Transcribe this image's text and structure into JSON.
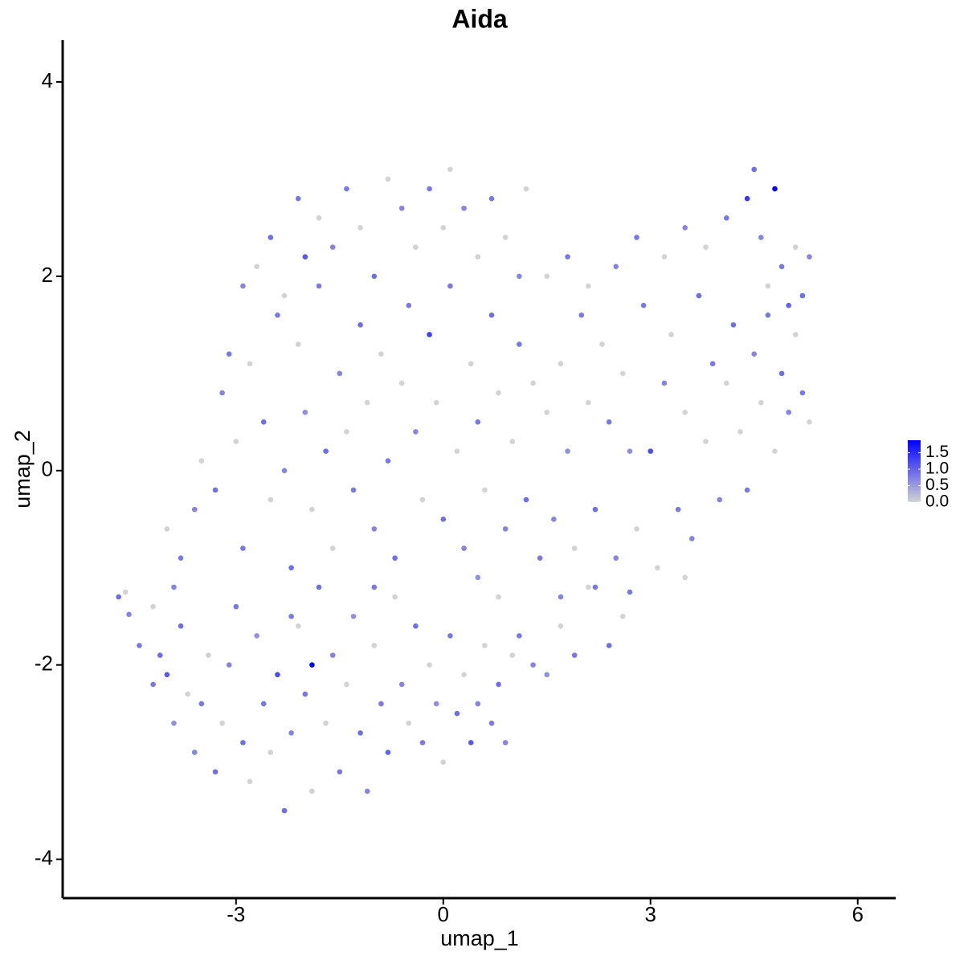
{
  "chart_data": {
    "type": "scatter",
    "title": "Aida",
    "x_label": "umap_1",
    "y_label": "umap_2",
    "xlim": [
      -5.51,
      6.55
    ],
    "ylim": [
      -4.4,
      4.43
    ],
    "xticks": [
      -3,
      0,
      3,
      6
    ],
    "yticks": [
      -4,
      -2,
      0,
      2,
      4
    ],
    "color_low": "#d3d3d3",
    "color_high": "#0000ff",
    "colorlim": [
      0,
      1.88
    ],
    "colorticks": [
      {
        "value": 0,
        "label": "0.0"
      },
      0.5,
      {
        "value": 1,
        "label": "1.0"
      },
      1.5
    ],
    "x": [
      -4.7,
      -4.6,
      -4.55,
      -4.4,
      -4.2,
      -4.1,
      -4.0,
      -4.2,
      -3.9,
      -3.8,
      -3.7,
      -3.6,
      -3.5,
      -3.4,
      -3.3,
      -3.2,
      -3.1,
      -3.0,
      -2.9,
      -2.8,
      -2.7,
      -2.6,
      -2.5,
      -2.4,
      -2.3,
      -2.2,
      -2.1,
      -2.0,
      -1.9,
      -1.9,
      -1.8,
      -1.7,
      -1.6,
      -1.5,
      -1.4,
      -1.3,
      -1.2,
      -1.1,
      -1.0,
      -0.9,
      -0.8,
      -0.7,
      -0.6,
      -0.5,
      -0.4,
      -0.3,
      -0.2,
      -0.1,
      0.0,
      0.1,
      0.2,
      0.3,
      0.4,
      0.5,
      0.6,
      0.7,
      0.8,
      0.9,
      1.0,
      1.1,
      1.3,
      1.5,
      1.7,
      1.9,
      2.1,
      2.4,
      2.6,
      2.7,
      -4.0,
      -3.8,
      -3.6,
      -3.5,
      -3.3,
      -3.2,
      -3.0,
      -2.9,
      -2.8,
      -2.6,
      -2.5,
      -2.4,
      -2.3,
      -2.2,
      -2.1,
      -2.0,
      -1.9,
      -1.8,
      -1.7,
      -1.6,
      -1.5,
      -1.4,
      -1.3,
      -1.2,
      -1.1,
      -1.0,
      -0.9,
      -0.8,
      -0.7,
      -0.6,
      -0.5,
      -0.4,
      -0.3,
      -0.2,
      -0.1,
      0.0,
      0.1,
      0.2,
      0.3,
      0.4,
      0.5,
      0.6,
      0.7,
      0.8,
      0.9,
      1.0,
      1.1,
      1.2,
      1.3,
      1.4,
      1.5,
      1.6,
      1.7,
      1.8,
      1.9,
      2.0,
      2.1,
      2.2,
      2.3,
      2.4,
      2.5,
      2.6,
      2.7,
      2.8,
      2.9,
      3.0,
      3.1,
      3.2,
      3.3,
      3.4,
      3.5,
      3.6,
      3.7,
      3.8,
      3.9,
      4.0,
      4.1,
      4.2,
      4.3,
      4.4,
      4.5,
      4.6,
      4.7,
      4.8,
      4.9,
      5.0,
      5.1,
      5.2,
      5.3,
      -3.1,
      -2.9,
      -2.7,
      -2.5,
      -2.3,
      -2.1,
      -2.0,
      -1.8,
      -1.6,
      -1.4,
      -1.2,
      -1.0,
      -0.8,
      -0.6,
      -0.4,
      -0.2,
      0.0,
      0.1,
      0.3,
      0.5,
      0.7,
      0.9,
      1.1,
      1.2,
      1.5,
      1.8,
      2.1,
      2.5,
      2.8,
      3.2,
      3.5,
      3.8,
      4.1,
      4.4,
      4.5,
      4.8,
      4.6,
      4.9,
      5.1,
      5.2,
      5.3,
      4.7,
      5.0,
      -2.2,
      -3.9,
      -1.0,
      0.8,
      1.7,
      2.2,
      3.5,
      0.5
    ],
    "y": [
      -1.3,
      -1.25,
      -1.48,
      -1.8,
      -1.4,
      -1.9,
      -2.1,
      -2.2,
      -2.6,
      -1.6,
      -2.3,
      -2.9,
      -2.4,
      -1.9,
      -3.1,
      -2.6,
      -2.0,
      -1.4,
      -2.8,
      -3.2,
      -1.7,
      -2.4,
      -2.9,
      -2.1,
      -3.5,
      -2.7,
      -1.6,
      -2.3,
      -2.0,
      -3.3,
      -1.2,
      -2.6,
      -1.9,
      -3.1,
      -2.2,
      -1.5,
      -2.7,
      -3.3,
      -1.8,
      -2.4,
      -2.9,
      -1.3,
      -2.2,
      -2.6,
      -1.6,
      -2.8,
      -2.0,
      -2.4,
      -3.0,
      -1.7,
      -2.5,
      -2.1,
      -2.8,
      -2.4,
      -1.8,
      -2.6,
      -2.2,
      -2.8,
      -1.9,
      -1.7,
      -2.0,
      -2.1,
      -1.6,
      -1.9,
      -1.2,
      -1.8,
      -1.5,
      -1.25,
      -0.6,
      -0.9,
      -0.4,
      0.1,
      -0.2,
      0.8,
      0.3,
      -0.8,
      1.1,
      0.5,
      -0.3,
      1.6,
      0.0,
      -1.0,
      1.3,
      0.6,
      -0.4,
      1.9,
      0.2,
      -0.8,
      1.0,
      0.4,
      -0.2,
      1.5,
      0.7,
      -0.6,
      1.2,
      0.1,
      -0.9,
      0.9,
      1.7,
      0.4,
      -0.3,
      1.4,
      0.7,
      -0.5,
      1.9,
      0.2,
      -0.8,
      1.1,
      0.5,
      -0.2,
      1.6,
      0.8,
      -0.6,
      0.3,
      1.3,
      -0.3,
      0.9,
      -0.9,
      0.6,
      -0.5,
      1.1,
      0.2,
      -0.8,
      1.6,
      0.7,
      -0.4,
      1.3,
      0.5,
      -0.9,
      1.0,
      0.2,
      -0.6,
      1.7,
      0.2,
      -1.0,
      0.9,
      1.4,
      -0.4,
      0.6,
      -0.7,
      1.8,
      0.3,
      1.1,
      -0.3,
      0.9,
      1.5,
      0.4,
      -0.2,
      1.2,
      0.7,
      1.6,
      0.2,
      1.0,
      0.6,
      1.4,
      0.8,
      0.5,
      1.2,
      1.9,
      2.1,
      2.4,
      1.8,
      2.8,
      2.2,
      2.6,
      2.3,
      2.9,
      2.5,
      2.0,
      3.0,
      2.7,
      2.3,
      2.9,
      2.5,
      3.1,
      2.7,
      2.2,
      2.8,
      2.4,
      2.0,
      2.9,
      2.0,
      2.2,
      1.9,
      2.1,
      2.4,
      2.2,
      2.5,
      2.3,
      2.6,
      2.8,
      3.1,
      2.9,
      2.4,
      2.1,
      2.3,
      1.8,
      2.2,
      1.9,
      1.7,
      -1.5,
      -1.2,
      -1.2,
      -1.3,
      -1.3,
      -1.2,
      -1.1,
      -1.1
    ],
    "values": [
      0.9,
      0,
      0.7,
      0.8,
      0,
      0.9,
      1.1,
      0.8,
      0.6,
      0.9,
      0,
      0.7,
      0.8,
      0,
      0.9,
      0,
      0.7,
      0.8,
      0.9,
      0,
      0.6,
      0.8,
      0,
      1.2,
      0.9,
      0.7,
      0,
      0.8,
      1.85,
      0,
      0.9,
      0,
      0.7,
      0.8,
      0,
      0.6,
      0.9,
      0.7,
      0,
      0.8,
      1.0,
      0,
      0.7,
      0,
      0.9,
      0.8,
      0,
      0.6,
      0,
      0.8,
      0.9,
      0,
      1.1,
      0.7,
      0,
      0.8,
      0.9,
      0.7,
      0,
      0.8,
      0.7,
      0.6,
      0,
      0.8,
      0,
      0.9,
      0,
      0.8,
      0,
      0.8,
      0.7,
      0,
      0.9,
      0.7,
      0,
      0.8,
      0,
      0.9,
      0,
      0.8,
      0.7,
      0.9,
      0,
      0.6,
      0,
      0.8,
      0.9,
      0,
      0.7,
      0,
      0.8,
      0.9,
      0,
      0.7,
      0,
      0.8,
      0.9,
      0,
      0.8,
      0.7,
      0,
      1.3,
      0,
      0.9,
      0.8,
      0,
      0.7,
      0,
      0.8,
      0,
      0.9,
      0,
      0.7,
      0,
      0.8,
      0.9,
      0,
      0.8,
      0,
      0.7,
      0,
      0.6,
      0,
      0.8,
      0,
      0.9,
      0,
      0.8,
      0.7,
      0,
      0.6,
      0,
      0.8,
      1.2,
      0,
      0.7,
      0,
      0.8,
      0,
      0.7,
      0.9,
      0,
      0.8,
      0.7,
      0,
      0.9,
      0,
      0.8,
      0.7,
      0,
      0.8,
      0,
      0.9,
      0.7,
      0,
      0.8,
      0,
      0.8,
      0.7,
      0,
      0.9,
      0,
      0.8,
      1.1,
      0,
      0.7,
      0.8,
      0,
      0.9,
      0,
      0.7,
      0,
      0.8,
      0,
      0,
      0.7,
      0,
      0.8,
      0,
      0.7,
      0,
      0,
      0.8,
      0,
      0.7,
      0.8,
      0,
      0.7,
      0,
      0.8,
      1.4,
      0.9,
      1.85,
      0.7,
      0.8,
      0,
      0.9,
      0.7,
      0,
      1.0,
      0.8,
      0.7,
      0.8,
      0,
      0.7,
      0.8,
      0,
      0.6
    ]
  }
}
